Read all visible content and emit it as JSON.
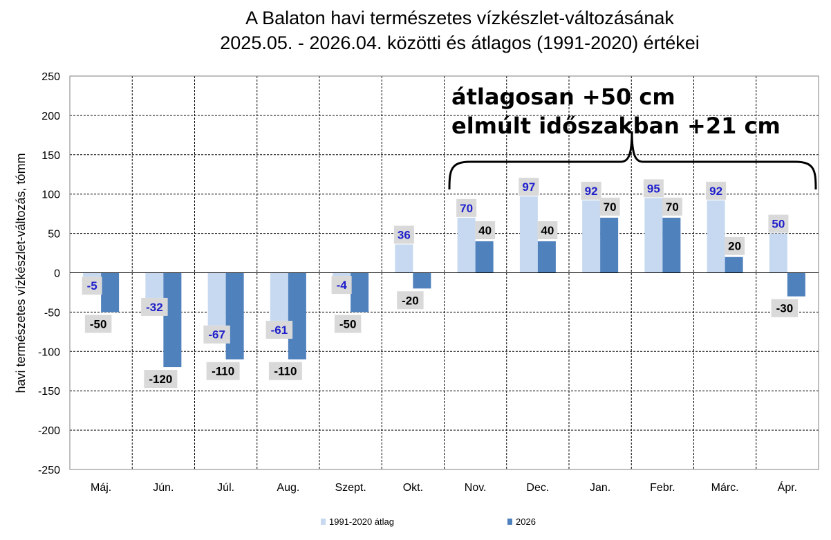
{
  "chart_data": {
    "type": "bar",
    "title": [
      "A Balaton havi természetes vízkészlet-változásának",
      "2025.05. - 2026.04. közötti és átlagos (1991-2020) értékei"
    ],
    "ylabel": "havi természetes vízkészlet-változás, tómm",
    "xlabel": "",
    "ylim": [
      -250,
      250
    ],
    "yticks": [
      250,
      200,
      150,
      100,
      50,
      0,
      -50,
      -100,
      -150,
      -200,
      -250
    ],
    "categories": [
      "Máj.",
      "Jún.",
      "Júl.",
      "Aug.",
      "Szept.",
      "Okt.",
      "Nov.",
      "Dec.",
      "Jan.",
      "Febr.",
      "Márc.",
      "Ápr."
    ],
    "series": [
      {
        "name": "1991-2020 átlag",
        "color": "#c6d9f1",
        "label_color": "#1f1fcc",
        "values": [
          -5,
          -32,
          -67,
          -61,
          -4,
          36,
          70,
          97,
          92,
          95,
          92,
          50
        ]
      },
      {
        "name": "2026",
        "color": "#4f81bd",
        "label_color": "#000000",
        "values": [
          -50,
          -120,
          -110,
          -110,
          -50,
          -20,
          40,
          40,
          70,
          70,
          20,
          -30
        ]
      }
    ],
    "grid": "dashed",
    "legend_position": "bottom",
    "annotation": {
      "lines": [
        "átlagosan +50 cm",
        "elmúlt időszakban +21 cm"
      ],
      "bracket_over": [
        "Nov.",
        "Ápr."
      ]
    }
  }
}
